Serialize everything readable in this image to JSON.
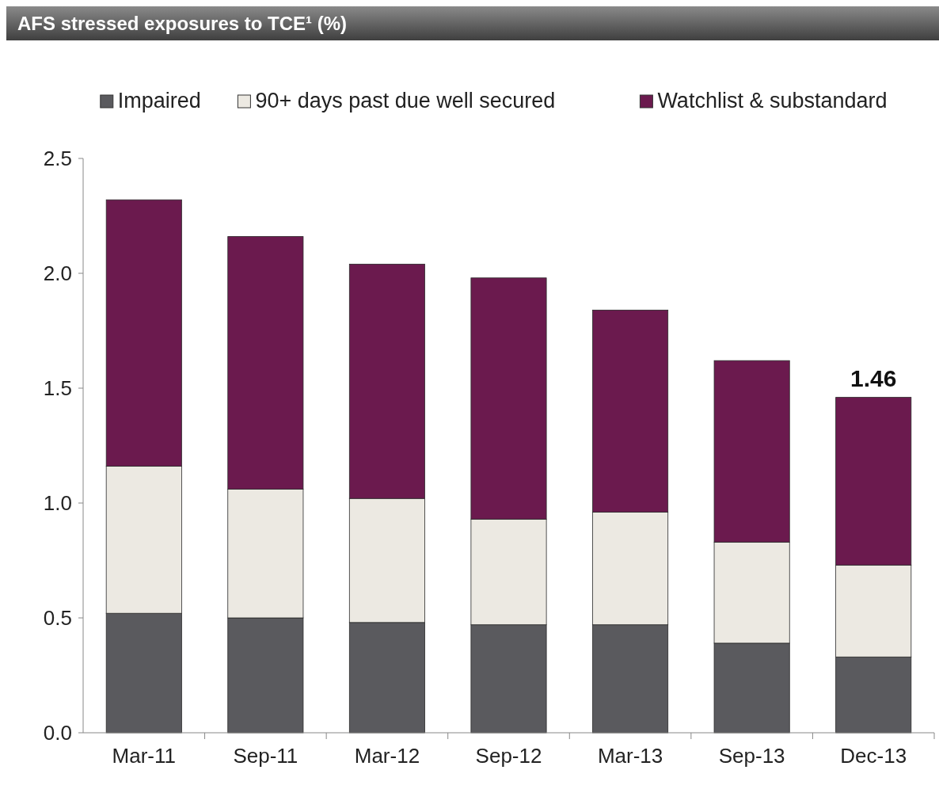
{
  "chart_data": {
    "type": "bar",
    "title": "AFS stressed exposures to TCE¹ (%)",
    "stacked": true,
    "categories": [
      "Mar-11",
      "Sep-11",
      "Mar-12",
      "Sep-12",
      "Mar-13",
      "Sep-13",
      "Dec-13"
    ],
    "series": [
      {
        "name": "Impaired",
        "color": "#5a5a5e",
        "values": [
          0.52,
          0.5,
          0.48,
          0.47,
          0.47,
          0.39,
          0.33
        ]
      },
      {
        "name": "90+ days past due well secured",
        "color": "#ece9e2",
        "values": [
          0.64,
          0.56,
          0.54,
          0.46,
          0.49,
          0.44,
          0.4
        ]
      },
      {
        "name": "Watchlist & substandard",
        "color": "#6b1a4e",
        "values": [
          1.16,
          1.1,
          1.02,
          1.05,
          0.88,
          0.79,
          0.73
        ]
      }
    ],
    "totals": [
      null,
      null,
      null,
      null,
      null,
      null,
      "1.46"
    ],
    "ylim": [
      0,
      2.5
    ],
    "yticks": [
      {
        "value": 0,
        "label": "0.0"
      },
      0.5,
      {
        "value": 1,
        "label": "1.0"
      },
      1.5,
      {
        "value": 2,
        "label": "2.0"
      },
      2.5
    ],
    "legend": "top",
    "grid": false
  }
}
